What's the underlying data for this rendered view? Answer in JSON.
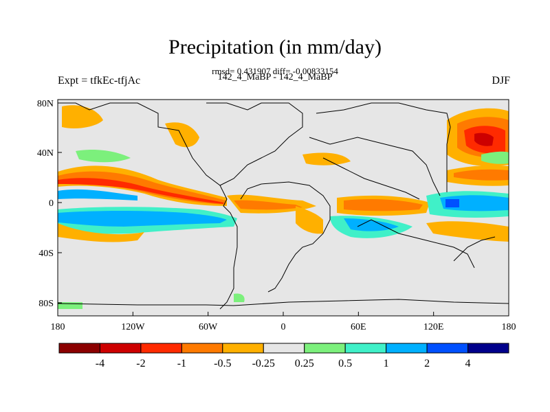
{
  "title": "Precipitation (in mm/day)",
  "stats_line": "rmsd= 0.431907 diff= -0.00833154",
  "case_line": "142_4_MaBP - 142_4_MaBP",
  "experiment_label": "Expt = tfkEc-tfjAc",
  "season_label": "DJF",
  "x_ticks": [
    "180",
    "120W",
    "60W",
    "0",
    "60E",
    "120E",
    "180"
  ],
  "y_ticks": [
    "80N",
    "40N",
    "0",
    "40S",
    "80S"
  ],
  "colorbar": {
    "colors": [
      "#8b0000",
      "#cd0000",
      "#ff2a00",
      "#ff7a00",
      "#ffb000",
      "#e6e6e6",
      "#7cf07c",
      "#40f0c8",
      "#00b0ff",
      "#0050ff",
      "#00008b"
    ],
    "labels": [
      "-4",
      "-2",
      "-1",
      "-0.5",
      "-0.25",
      "0.25",
      "0.5",
      "1",
      "2",
      "4"
    ]
  }
}
